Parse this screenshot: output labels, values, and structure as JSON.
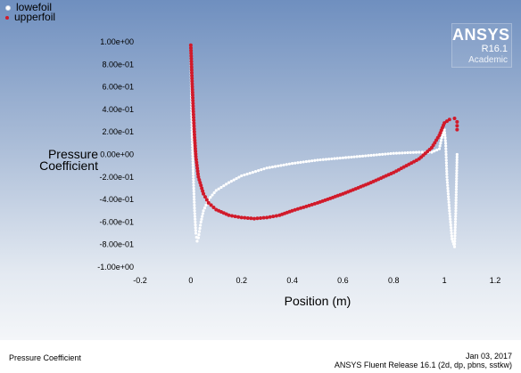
{
  "colors": {
    "lowefoil": "#ffffff",
    "upperfoil": "#d11a2a"
  },
  "logo": {
    "name": "ANSYS",
    "release": "R16.1",
    "edition": "Academic"
  },
  "footer": {
    "left": "Pressure Coefficient",
    "date": "Jan 03, 2017",
    "release": "ANSYS Fluent Release 16.1 (2d, dp, pbns, sstkw)"
  },
  "chart_data": {
    "type": "scatter",
    "ylabel_lines": [
      "Pressure",
      "Coefficient"
    ],
    "xlabel": "Position (m)",
    "xlim": [
      -0.2,
      1.2
    ],
    "ylim": [
      -1.0,
      1.0
    ],
    "x_ticks": [
      -0.2,
      0,
      0.2,
      0.4,
      0.6,
      0.8,
      1,
      1.2
    ],
    "x_tick_labels": [
      "-0.2",
      "0",
      "0.2",
      "0.4",
      "0.6",
      "0.8",
      "1",
      "1.2"
    ],
    "y_ticks": [
      1.0,
      0.8,
      0.6,
      0.4,
      0.2,
      0.0,
      -0.2,
      -0.4,
      -0.6,
      -0.8,
      -1.0
    ],
    "y_tick_labels": [
      "1.00e+00",
      "8.00e-01",
      "6.00e-01",
      "4.00e-01",
      "2.00e-01",
      "0.00e+00",
      "-2.00e-01",
      "-4.00e-01",
      "-6.00e-01",
      "-8.00e-01",
      "-1.00e+00"
    ],
    "legend_position": "top-left",
    "series": [
      {
        "name": "lowefoil",
        "x": [
          0.0,
          0.002,
          0.005,
          0.01,
          0.015,
          0.02,
          0.025,
          0.03,
          0.04,
          0.05,
          0.07,
          0.1,
          0.15,
          0.2,
          0.3,
          0.4,
          0.5,
          0.6,
          0.7,
          0.8,
          0.9,
          0.95,
          0.98,
          0.99,
          1.0,
          1.005,
          1.01,
          1.02,
          1.03,
          1.04,
          1.045,
          1.05
        ],
        "y": [
          0.92,
          0.6,
          0.2,
          -0.2,
          -0.5,
          -0.7,
          -0.77,
          -0.74,
          -0.6,
          -0.5,
          -0.4,
          -0.32,
          -0.25,
          -0.19,
          -0.12,
          -0.08,
          -0.05,
          -0.03,
          -0.01,
          0.01,
          0.02,
          0.02,
          0.05,
          0.15,
          0.22,
          0.1,
          -0.2,
          -0.5,
          -0.75,
          -0.82,
          -0.5,
          0.0
        ]
      },
      {
        "name": "upperfoil",
        "x": [
          0.0,
          0.002,
          0.005,
          0.01,
          0.015,
          0.02,
          0.03,
          0.05,
          0.07,
          0.1,
          0.15,
          0.2,
          0.25,
          0.3,
          0.35,
          0.4,
          0.5,
          0.6,
          0.7,
          0.8,
          0.9,
          0.95,
          0.98,
          1.0,
          1.02,
          1.04,
          1.05,
          1.05
        ],
        "y": [
          0.97,
          0.85,
          0.65,
          0.38,
          0.15,
          -0.02,
          -0.2,
          -0.35,
          -0.43,
          -0.49,
          -0.54,
          -0.56,
          -0.57,
          -0.56,
          -0.54,
          -0.5,
          -0.43,
          -0.35,
          -0.26,
          -0.16,
          -0.04,
          0.06,
          0.17,
          0.28,
          0.31,
          0.32,
          0.29,
          0.22
        ]
      }
    ]
  }
}
